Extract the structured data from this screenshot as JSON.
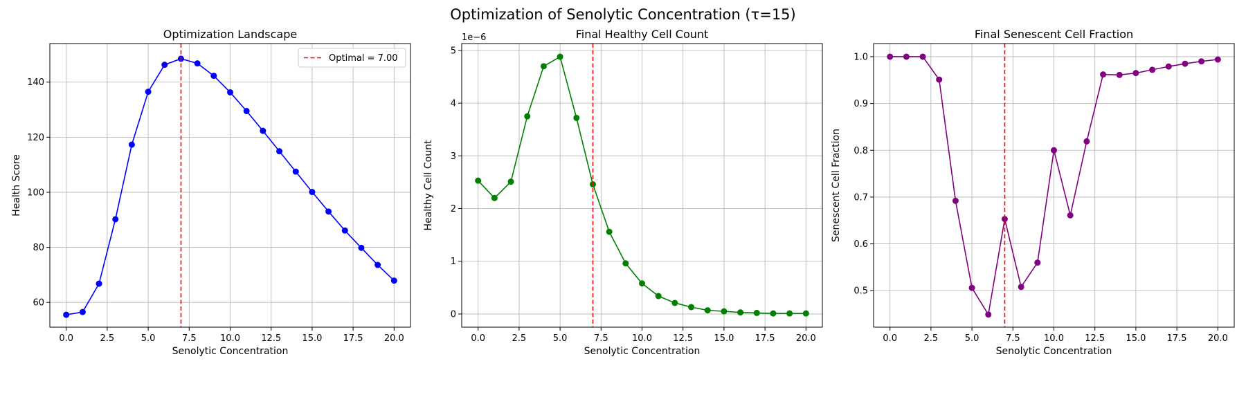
{
  "figure": {
    "title": "Optimization of Senolytic Concentration (τ=15)"
  },
  "chart_data": [
    {
      "type": "line",
      "title": "Optimization Landscape",
      "xlabel": "Senolytic Concentration",
      "ylabel": "Health Score",
      "xlim": [
        -1.0,
        21.0
      ],
      "ylim": [
        51,
        154
      ],
      "xticks": [
        0,
        2.5,
        5,
        7.5,
        10,
        12.5,
        15,
        17.5,
        20
      ],
      "xtick_labels": [
        "0.0",
        "2.5",
        "5.0",
        "7.5",
        "10.0",
        "12.5",
        "15.0",
        "17.5",
        "20.0"
      ],
      "yticks": [
        60,
        80,
        100,
        120,
        140
      ],
      "ytick_labels": [
        "60",
        "80",
        "100",
        "120",
        "140"
      ],
      "exponent_label": "",
      "grid": true,
      "series": [
        {
          "color": "#0000ff",
          "marker": "circle",
          "x": [
            0,
            1,
            2,
            3,
            4,
            5,
            6,
            7,
            8,
            9,
            10,
            11,
            12,
            13,
            14,
            15,
            16,
            17,
            18,
            19,
            20
          ],
          "y": [
            55.5,
            56.5,
            66.8,
            90.2,
            117.3,
            136.5,
            146.3,
            148.5,
            146.8,
            142.3,
            136.3,
            129.5,
            122.3,
            114.9,
            107.5,
            100.1,
            93.0,
            86.1,
            79.8,
            73.6,
            67.9
          ]
        }
      ],
      "vline": {
        "x": 7.0,
        "color": "#ff0000",
        "style": "dashed"
      },
      "legend": {
        "position": "top-right",
        "label": "Optimal = 7.00"
      }
    },
    {
      "type": "line",
      "title": "Final Healthy Cell Count",
      "xlabel": "Senolytic Concentration",
      "ylabel": "Healthy Cell Count",
      "xlim": [
        -1.0,
        21.0
      ],
      "ylim": [
        -0.25,
        5.13
      ],
      "xticks": [
        0,
        2.5,
        5,
        7.5,
        10,
        12.5,
        15,
        17.5,
        20
      ],
      "xtick_labels": [
        "0.0",
        "2.5",
        "5.0",
        "7.5",
        "10.0",
        "12.5",
        "15.0",
        "17.5",
        "20.0"
      ],
      "yticks": [
        0,
        1,
        2,
        3,
        4,
        5
      ],
      "ytick_labels": [
        "0",
        "1",
        "2",
        "3",
        "4",
        "5"
      ],
      "exponent_label": "1e−6",
      "grid": true,
      "series": [
        {
          "color": "#008000",
          "marker": "circle",
          "x": [
            0,
            1,
            2,
            3,
            4,
            5,
            6,
            7,
            8,
            9,
            10,
            11,
            12,
            13,
            14,
            15,
            16,
            17,
            18,
            19,
            20
          ],
          "y": [
            2.53,
            2.2,
            2.51,
            3.75,
            4.7,
            4.88,
            3.72,
            2.46,
            1.56,
            0.96,
            0.58,
            0.34,
            0.21,
            0.13,
            0.07,
            0.05,
            0.03,
            0.02,
            0.01,
            0.01,
            0.01
          ]
        }
      ],
      "vline": {
        "x": 7.0,
        "color": "#ff0000",
        "style": "dashed"
      }
    },
    {
      "type": "line",
      "title": "Final Senescent Cell Fraction",
      "xlabel": "Senolytic Concentration",
      "ylabel": "Senescent Cell Fraction",
      "xlim": [
        -1.0,
        21.0
      ],
      "ylim": [
        0.422,
        1.028
      ],
      "xticks": [
        0,
        2.5,
        5,
        7.5,
        10,
        12.5,
        15,
        17.5,
        20
      ],
      "xtick_labels": [
        "0.0",
        "2.5",
        "5.0",
        "7.5",
        "10.0",
        "12.5",
        "15.0",
        "17.5",
        "20.0"
      ],
      "yticks": [
        0.5,
        0.6,
        0.7,
        0.8,
        0.9,
        1.0
      ],
      "ytick_labels": [
        "0.5",
        "0.6",
        "0.7",
        "0.8",
        "0.9",
        "1.0"
      ],
      "exponent_label": "",
      "grid": true,
      "series": [
        {
          "color": "#800080",
          "marker": "circle",
          "x": [
            0,
            1,
            2,
            3,
            4,
            5,
            6,
            7,
            8,
            9,
            10,
            11,
            12,
            13,
            14,
            15,
            16,
            17,
            18,
            19,
            20
          ],
          "y": [
            1.0,
            1.0,
            1.0,
            0.951,
            0.692,
            0.506,
            0.449,
            0.653,
            0.508,
            0.56,
            0.8,
            0.661,
            0.819,
            0.962,
            0.961,
            0.965,
            0.972,
            0.979,
            0.985,
            0.99,
            0.994
          ]
        }
      ],
      "vline": {
        "x": 7.0,
        "color": "#ff0000",
        "style": "dashed"
      }
    }
  ]
}
